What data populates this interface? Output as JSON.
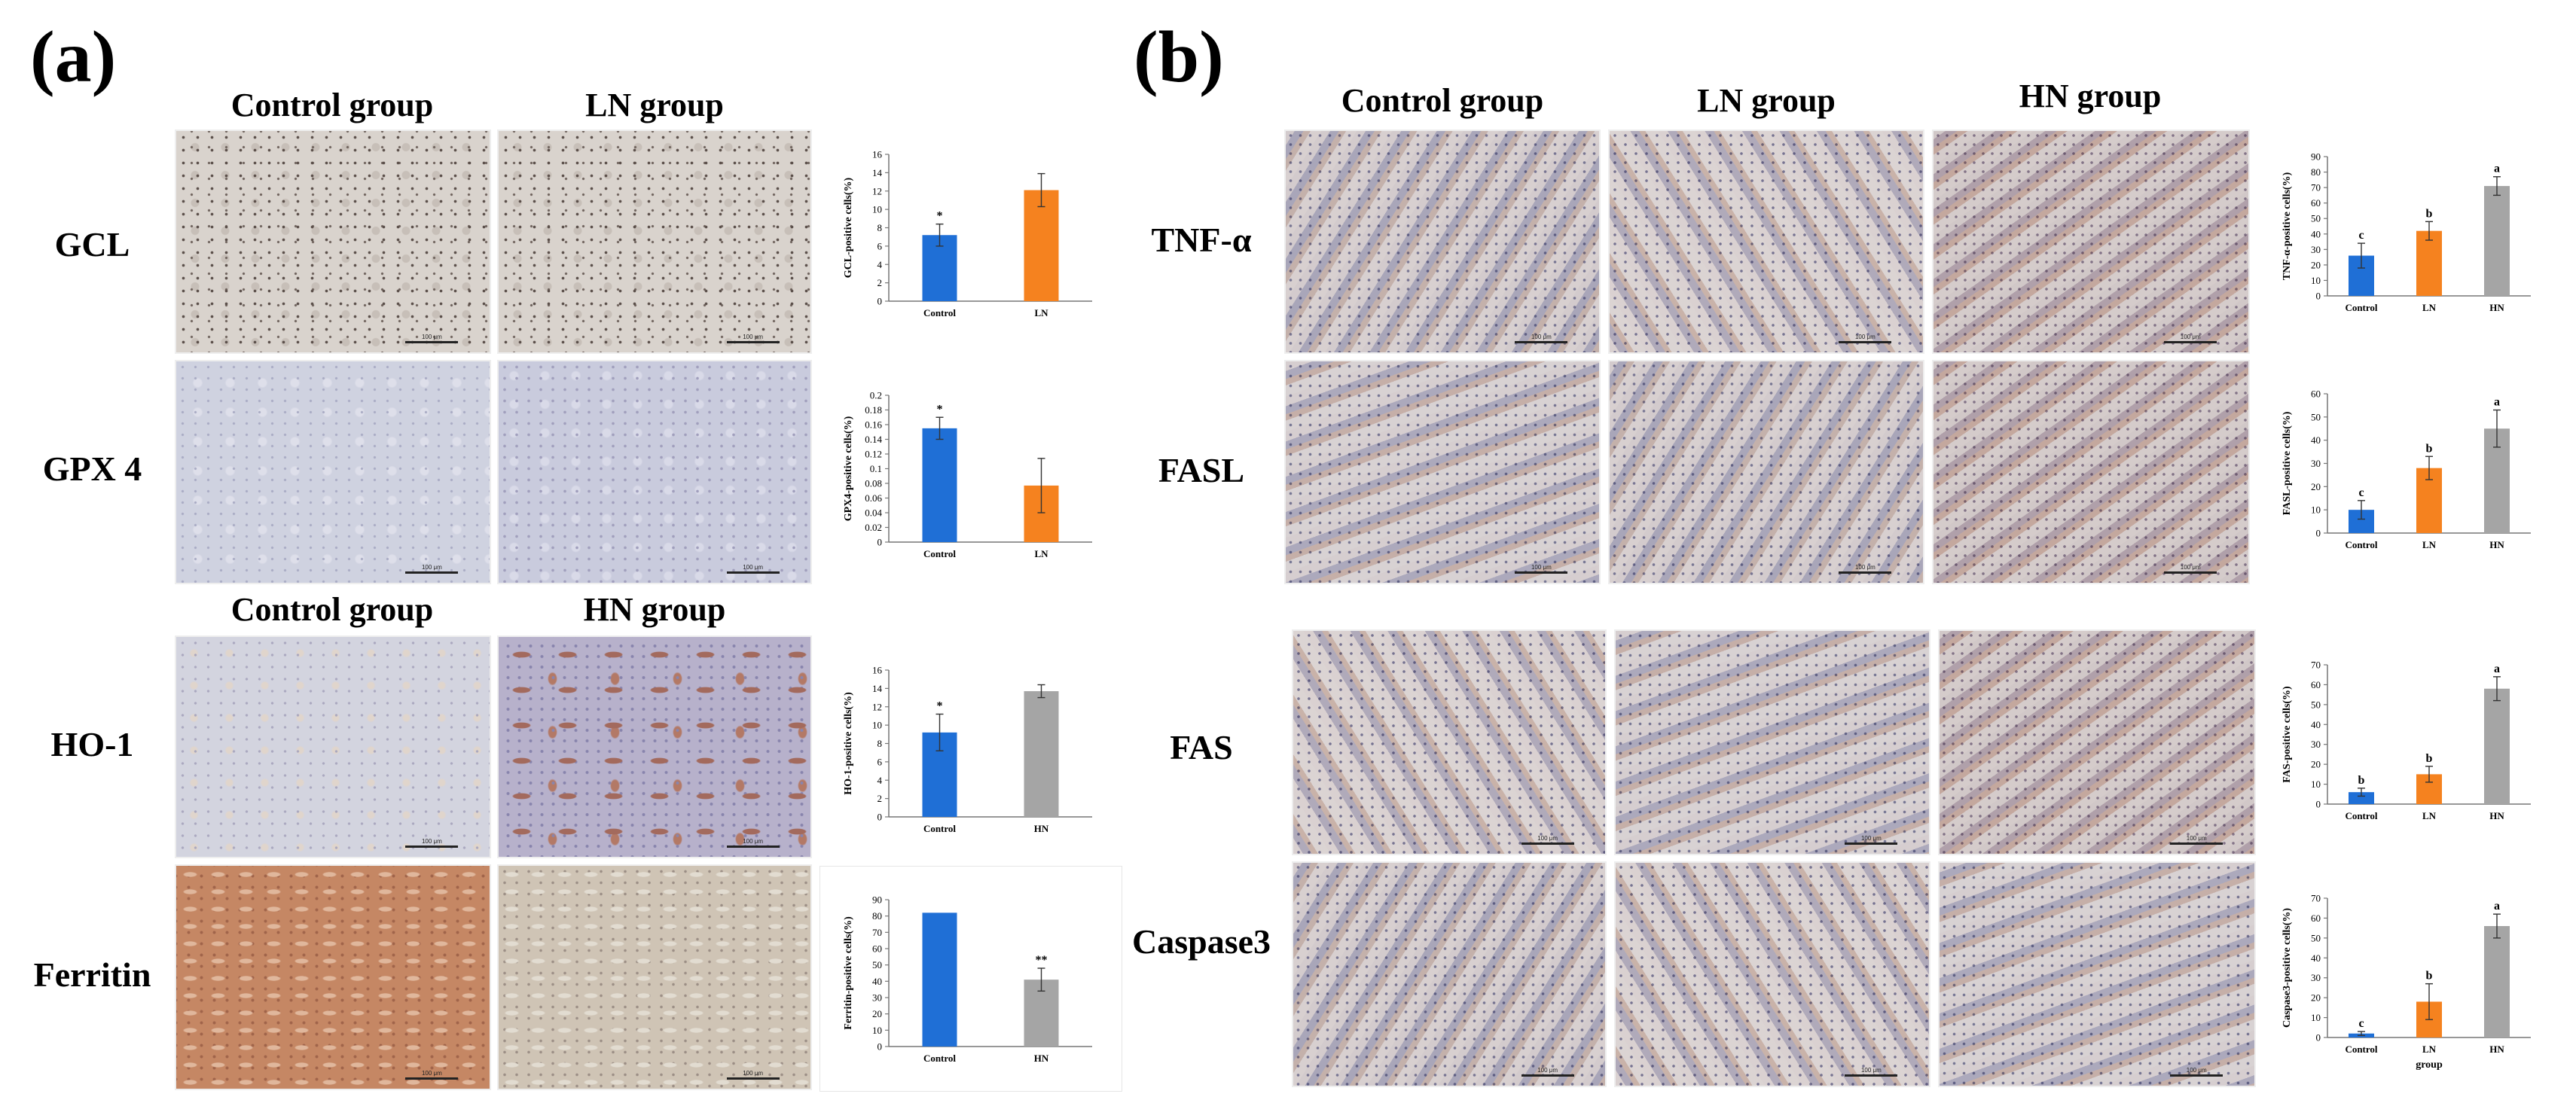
{
  "panel_a": {
    "label": "(a)",
    "col_headers_top": [
      "Control group",
      "LN group"
    ],
    "col_headers_bottom": [
      "Control group",
      "HN group"
    ],
    "rows": [
      "GCL",
      "GPX 4",
      "HO-1",
      "Ferritin"
    ],
    "scale_text": "100 μm"
  },
  "panel_b": {
    "label": "(b)",
    "col_headers": [
      "Control group",
      "LN group",
      "HN group"
    ],
    "rows": [
      "TNF-α",
      "FASL",
      "FAS",
      "Caspase3"
    ],
    "scale_text": "100 μm"
  },
  "colors": {
    "control": "#1f6fd6",
    "ln": "#f5821f",
    "hn": "#a5a5a5"
  },
  "chart_data": [
    {
      "id": "gcl",
      "type": "bar",
      "title": "",
      "categories": [
        "Control",
        "LN"
      ],
      "values": [
        7.2,
        12.1
      ],
      "errors": [
        1.2,
        1.8
      ],
      "labels": [
        "*",
        ""
      ],
      "ylabel": "GCL-positive cells(%)",
      "xlabel": "",
      "ylim": [
        0,
        16
      ],
      "ticks": [
        "0",
        "2",
        "4",
        "6",
        "8",
        "10",
        "12",
        "14",
        "16"
      ],
      "colors": [
        "#1f6fd6",
        "#f5821f"
      ]
    },
    {
      "id": "gpx4",
      "type": "bar",
      "title": "",
      "categories": [
        "Control",
        "LN"
      ],
      "values": [
        0.155,
        0.077
      ],
      "errors": [
        0.015,
        0.037
      ],
      "labels": [
        "*",
        ""
      ],
      "ylabel": "GPX4-positive cells(%)",
      "xlabel": "",
      "ylim": [
        0,
        0.2
      ],
      "ticks": [
        "0",
        "0.02",
        "0.04",
        "0.06",
        "0.08",
        "0.1",
        "0.12",
        "0.14",
        "0.16",
        "0.18",
        "0.2"
      ],
      "colors": [
        "#1f6fd6",
        "#f5821f"
      ]
    },
    {
      "id": "ho1",
      "type": "bar",
      "title": "",
      "categories": [
        "Control",
        "HN"
      ],
      "values": [
        9.2,
        13.7
      ],
      "errors": [
        2.0,
        0.7
      ],
      "labels": [
        "*",
        ""
      ],
      "ylabel": "HO-1-positive cells(%)",
      "xlabel": "",
      "ylim": [
        0,
        16
      ],
      "ticks": [
        "0",
        "2",
        "4",
        "6",
        "8",
        "10",
        "12",
        "14",
        "16"
      ],
      "colors": [
        "#1f6fd6",
        "#a5a5a5"
      ]
    },
    {
      "id": "ferritin",
      "type": "bar",
      "title": "",
      "categories": [
        "Control",
        "HN"
      ],
      "values": [
        82,
        41
      ],
      "errors": [
        0,
        7
      ],
      "labels": [
        "",
        "**"
      ],
      "ylabel": "Ferritin-positive cells(%)",
      "xlabel": "",
      "ylim": [
        0,
        90
      ],
      "ticks": [
        "0",
        "10",
        "20",
        "30",
        "40",
        "50",
        "60",
        "70",
        "80",
        "90"
      ],
      "colors": [
        "#1f6fd6",
        "#a5a5a5"
      ]
    },
    {
      "id": "tnf",
      "type": "bar",
      "title": "",
      "categories": [
        "Control",
        "LN",
        "HN"
      ],
      "values": [
        26,
        42,
        71
      ],
      "errors": [
        8,
        6,
        6
      ],
      "labels": [
        "c",
        "b",
        "a"
      ],
      "ylabel": "TNF-α-positive cells(%)",
      "xlabel": "",
      "ylim": [
        0,
        90
      ],
      "ticks": [
        "0",
        "10",
        "20",
        "30",
        "40",
        "50",
        "60",
        "70",
        "80",
        "90"
      ],
      "colors": [
        "#1f6fd6",
        "#f5821f",
        "#a5a5a5"
      ]
    },
    {
      "id": "fasl",
      "type": "bar",
      "title": "",
      "categories": [
        "Control",
        "LN",
        "HN"
      ],
      "values": [
        10,
        28,
        45
      ],
      "errors": [
        4,
        5,
        8
      ],
      "labels": [
        "c",
        "b",
        "a"
      ],
      "ylabel": "FASL-positive cells(%)",
      "xlabel": "",
      "ylim": [
        0,
        60
      ],
      "ticks": [
        "0",
        "10",
        "20",
        "30",
        "40",
        "50",
        "60"
      ],
      "colors": [
        "#1f6fd6",
        "#f5821f",
        "#a5a5a5"
      ]
    },
    {
      "id": "fas",
      "type": "bar",
      "title": "",
      "categories": [
        "Control",
        "LN",
        "HN"
      ],
      "values": [
        6,
        15,
        58
      ],
      "errors": [
        2,
        4,
        6
      ],
      "labels": [
        "b",
        "b",
        "a"
      ],
      "ylabel": "FAS-positive cells(%)",
      "xlabel": "",
      "ylim": [
        0,
        70
      ],
      "ticks": [
        "0",
        "10",
        "20",
        "30",
        "40",
        "50",
        "60",
        "70"
      ],
      "colors": [
        "#1f6fd6",
        "#f5821f",
        "#a5a5a5"
      ]
    },
    {
      "id": "caspase3",
      "type": "bar",
      "title": "",
      "categories": [
        "Control",
        "LN",
        "HN"
      ],
      "values": [
        2,
        18,
        56
      ],
      "errors": [
        1,
        9,
        6
      ],
      "labels": [
        "c",
        "b",
        "a"
      ],
      "ylabel": "Caspase3-positive cells(%)",
      "xlabel": "group",
      "ylim": [
        0,
        70
      ],
      "ticks": [
        "0",
        "10",
        "20",
        "30",
        "40",
        "50",
        "60",
        "70"
      ],
      "colors": [
        "#1f6fd6",
        "#f5821f",
        "#a5a5a5"
      ]
    }
  ]
}
